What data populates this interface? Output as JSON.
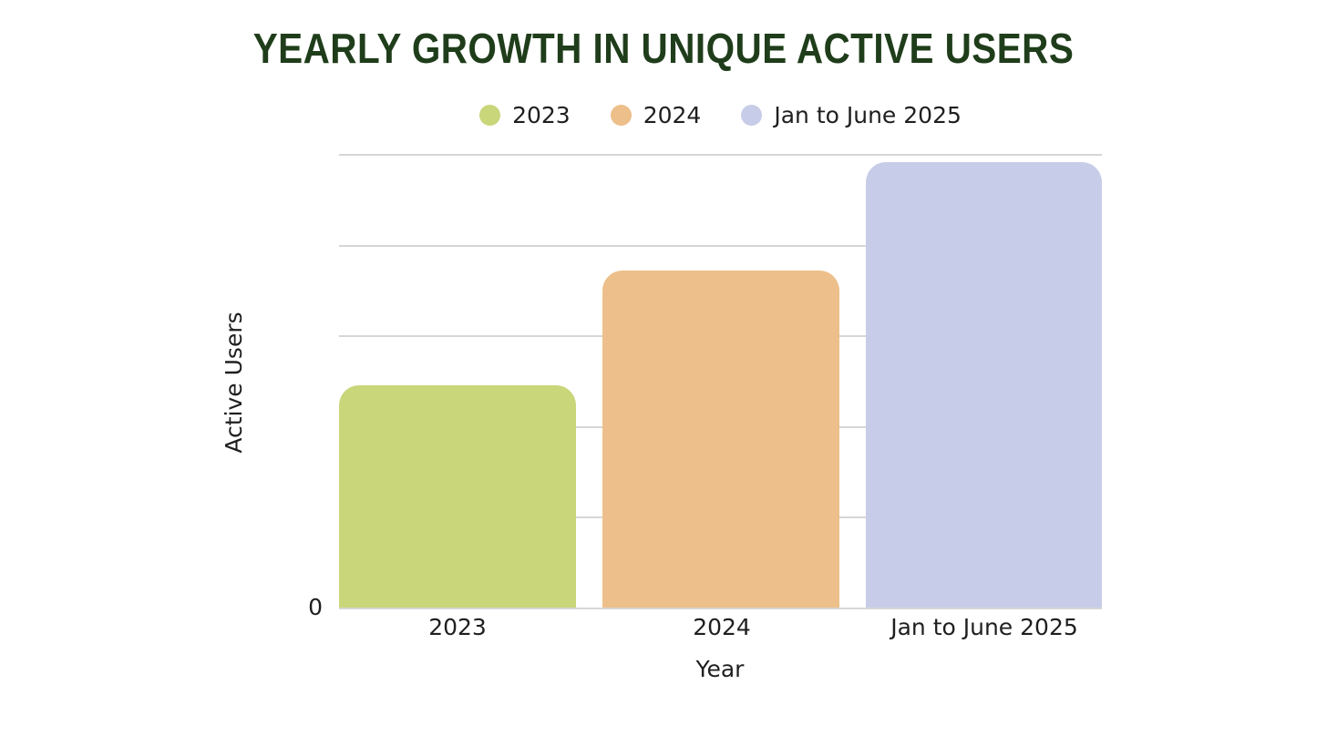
{
  "title": {
    "text": "YEARLY GROWTH IN UNIQUE ACTIVE USERS",
    "color": "#1f3d1a"
  },
  "legend": {
    "items": [
      {
        "label": "2023",
        "color": "#c9d67a"
      },
      {
        "label": "2024",
        "color": "#edbf8a"
      },
      {
        "label": "Jan to June 2025",
        "color": "#c7cde8"
      }
    ]
  },
  "axes": {
    "ylabel": "Active Users",
    "xlabel": "Year",
    "origin_label": "0"
  },
  "chart_data": {
    "type": "bar",
    "title": "YEARLY GROWTH IN UNIQUE ACTIVE USERS",
    "categories": [
      "2023",
      "2024",
      "Jan to June 2025"
    ],
    "values": [
      2.45,
      3.72,
      4.91
    ],
    "series_colors": [
      "#c9d67a",
      "#edbf8a",
      "#c7cde8"
    ],
    "xlabel": "Year",
    "ylabel": "Active Users",
    "ylim": [
      0,
      5
    ],
    "gridline_count": 6,
    "gridline_color": "#d6d6d6",
    "visible_y_tick_labels": [
      "0"
    ],
    "legend_position": "top",
    "legend_entries": [
      "2023",
      "2024",
      "Jan to June 2025"
    ]
  }
}
